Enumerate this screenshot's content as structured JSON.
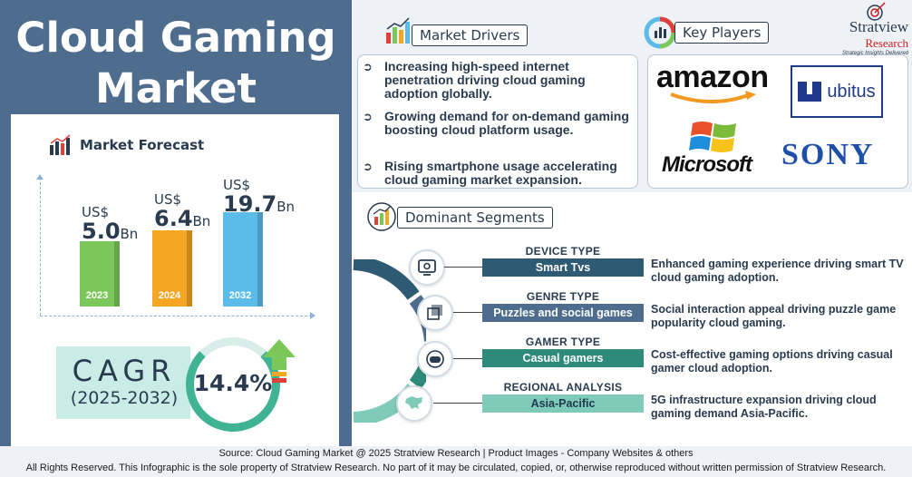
{
  "title_line1": "Cloud Gaming",
  "title_line2": "Market",
  "forecast": {
    "heading": "Market Forecast",
    "bars": [
      {
        "year": "2023",
        "currency": "US$",
        "value": "5.0",
        "unit": "Bn",
        "color": "#7cc75a"
      },
      {
        "year": "2024",
        "currency": "US$",
        "value": "6.4",
        "unit": "Bn",
        "color": "#f5a623"
      },
      {
        "year": "2032",
        "currency": "US$",
        "value": "19.7",
        "unit": "Bn",
        "color": "#5bbcea"
      }
    ]
  },
  "cagr": {
    "label": "CAGR",
    "period": "(2025-2032)",
    "value": "14.4%"
  },
  "drivers": {
    "heading": "Market Drivers",
    "items": [
      "Increasing high-speed internet penetration driving cloud gaming adoption globally.",
      "Growing demand for on-demand gaming boosting cloud platform usage.",
      "Rising smartphone usage accelerating cloud gaming market expansion."
    ]
  },
  "players": {
    "heading": "Key Players",
    "amazon": "amazon",
    "ubitus": "ubitus",
    "microsoft": "Microsoft",
    "sony": "SONY"
  },
  "brand": {
    "line1": "Stratview",
    "line2": "Research",
    "tagline": "Strategic Insights Delivered"
  },
  "segments": {
    "heading": "Dominant Segments",
    "items": [
      {
        "category": "DEVICE TYPE",
        "value": "Smart Tvs",
        "color": "#2f5a74",
        "icon": "tv-settings-icon",
        "desc": "Enhanced gaming experience driving smart TV cloud gaming adoption."
      },
      {
        "category": "GENRE TYPE",
        "value": "Puzzles and social games",
        "color": "#4e6c8e",
        "icon": "puzzle-icon",
        "desc": "Social interaction appeal driving puzzle game popularity cloud gaming."
      },
      {
        "category": "GAMER TYPE",
        "value": "Casual gamers",
        "color": "#2e8a7a",
        "icon": "gamepad-icon",
        "desc": "Cost-effective gaming options driving casual gamer cloud adoption."
      },
      {
        "category": "REGIONAL ANALYSIS",
        "value": "Asia-Pacific",
        "color": "#7fcab8",
        "icon": "asia-map-icon",
        "desc": "5G infrastructure expansion driving cloud gaming demand Asia-Pacific."
      }
    ]
  },
  "footer": {
    "source": "Source: Cloud Gaming Market @ 2025 Stratview Research | Product Images - Company Websites & others",
    "rights": "All Rights Reserved. This Infographic is the sole property of Stratview Research. No part of it may be circulated, copied, or, otherwise reproduced without written permission of Stratview Research."
  }
}
